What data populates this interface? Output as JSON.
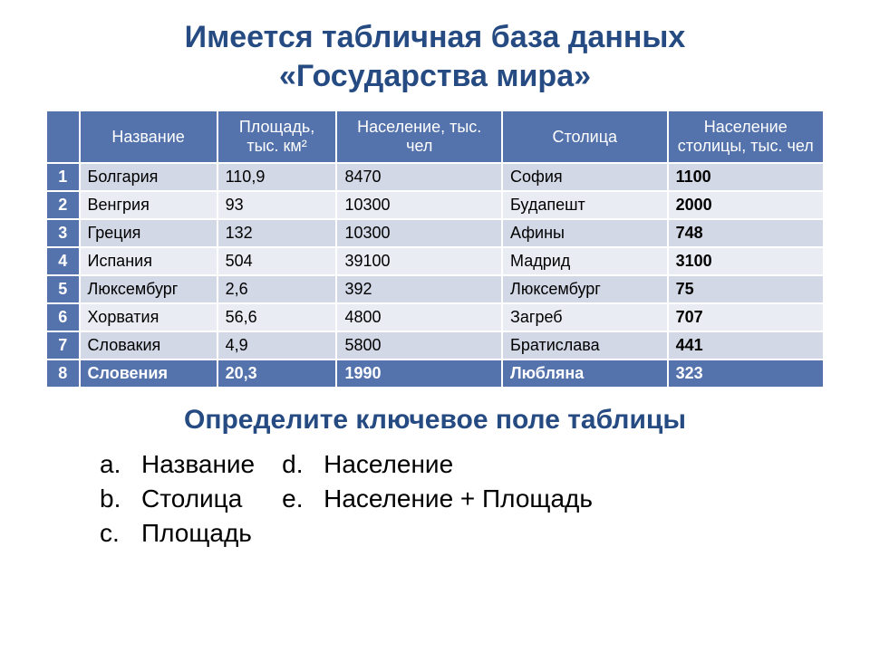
{
  "title_line1": "Имеется табличная база данных",
  "title_line2": "«Государства мира»",
  "table": {
    "columns": [
      "",
      "Название",
      "Площадь, тыс. км²",
      "Население, тыс. чел",
      "Столица",
      "Население столицы, тыс. чел"
    ],
    "rows": [
      {
        "n": "1",
        "name": "Болгария",
        "area": "110,9",
        "pop": "8470",
        "cap": "София",
        "cap_pop": "1100"
      },
      {
        "n": "2",
        "name": "Венгрия",
        "area": "93",
        "pop": "10300",
        "cap": "Будапешт",
        "cap_pop": "2000"
      },
      {
        "n": "3",
        "name": "Греция",
        "area": "132",
        "pop": "10300",
        "cap": "Афины",
        "cap_pop": "748"
      },
      {
        "n": "4",
        "name": "Испания",
        "area": "504",
        "pop": "39100",
        "cap": "Мадрид",
        "cap_pop": "3100"
      },
      {
        "n": "5",
        "name": "Люксембург",
        "area": "2,6",
        "pop": "392",
        "cap": "Люксембург",
        "cap_pop": "75"
      },
      {
        "n": "6",
        "name": "Хорватия",
        "area": "56,6",
        "pop": "4800",
        "cap": "Загреб",
        "cap_pop": "707"
      },
      {
        "n": "7",
        "name": "Словакия",
        "area": "4,9",
        "pop": "5800",
        "cap": "Братислава",
        "cap_pop": "441"
      },
      {
        "n": "8",
        "name": "Словения",
        "area": "20,3",
        "pop": "1990",
        "cap": "Любляна",
        "cap_pop": "323"
      }
    ],
    "last_row_index": 7,
    "colors": {
      "header_bg": "#5472ac",
      "header_fg": "#ffffff",
      "row_odd_bg": "#d2d8e6",
      "row_even_bg": "#e9ecf3",
      "accent_text": "#254b82",
      "border": "#ffffff"
    }
  },
  "question": "Определите ключевое поле таблицы",
  "options_left": [
    {
      "letter": "a.",
      "text": "Название"
    },
    {
      "letter": "b.",
      "text": "Столица"
    },
    {
      "letter": "c.",
      "text": "Площадь"
    }
  ],
  "options_right": [
    {
      "letter": "d.",
      "text": "Население"
    },
    {
      "letter": "e.",
      "text": "Население + Площадь"
    }
  ]
}
